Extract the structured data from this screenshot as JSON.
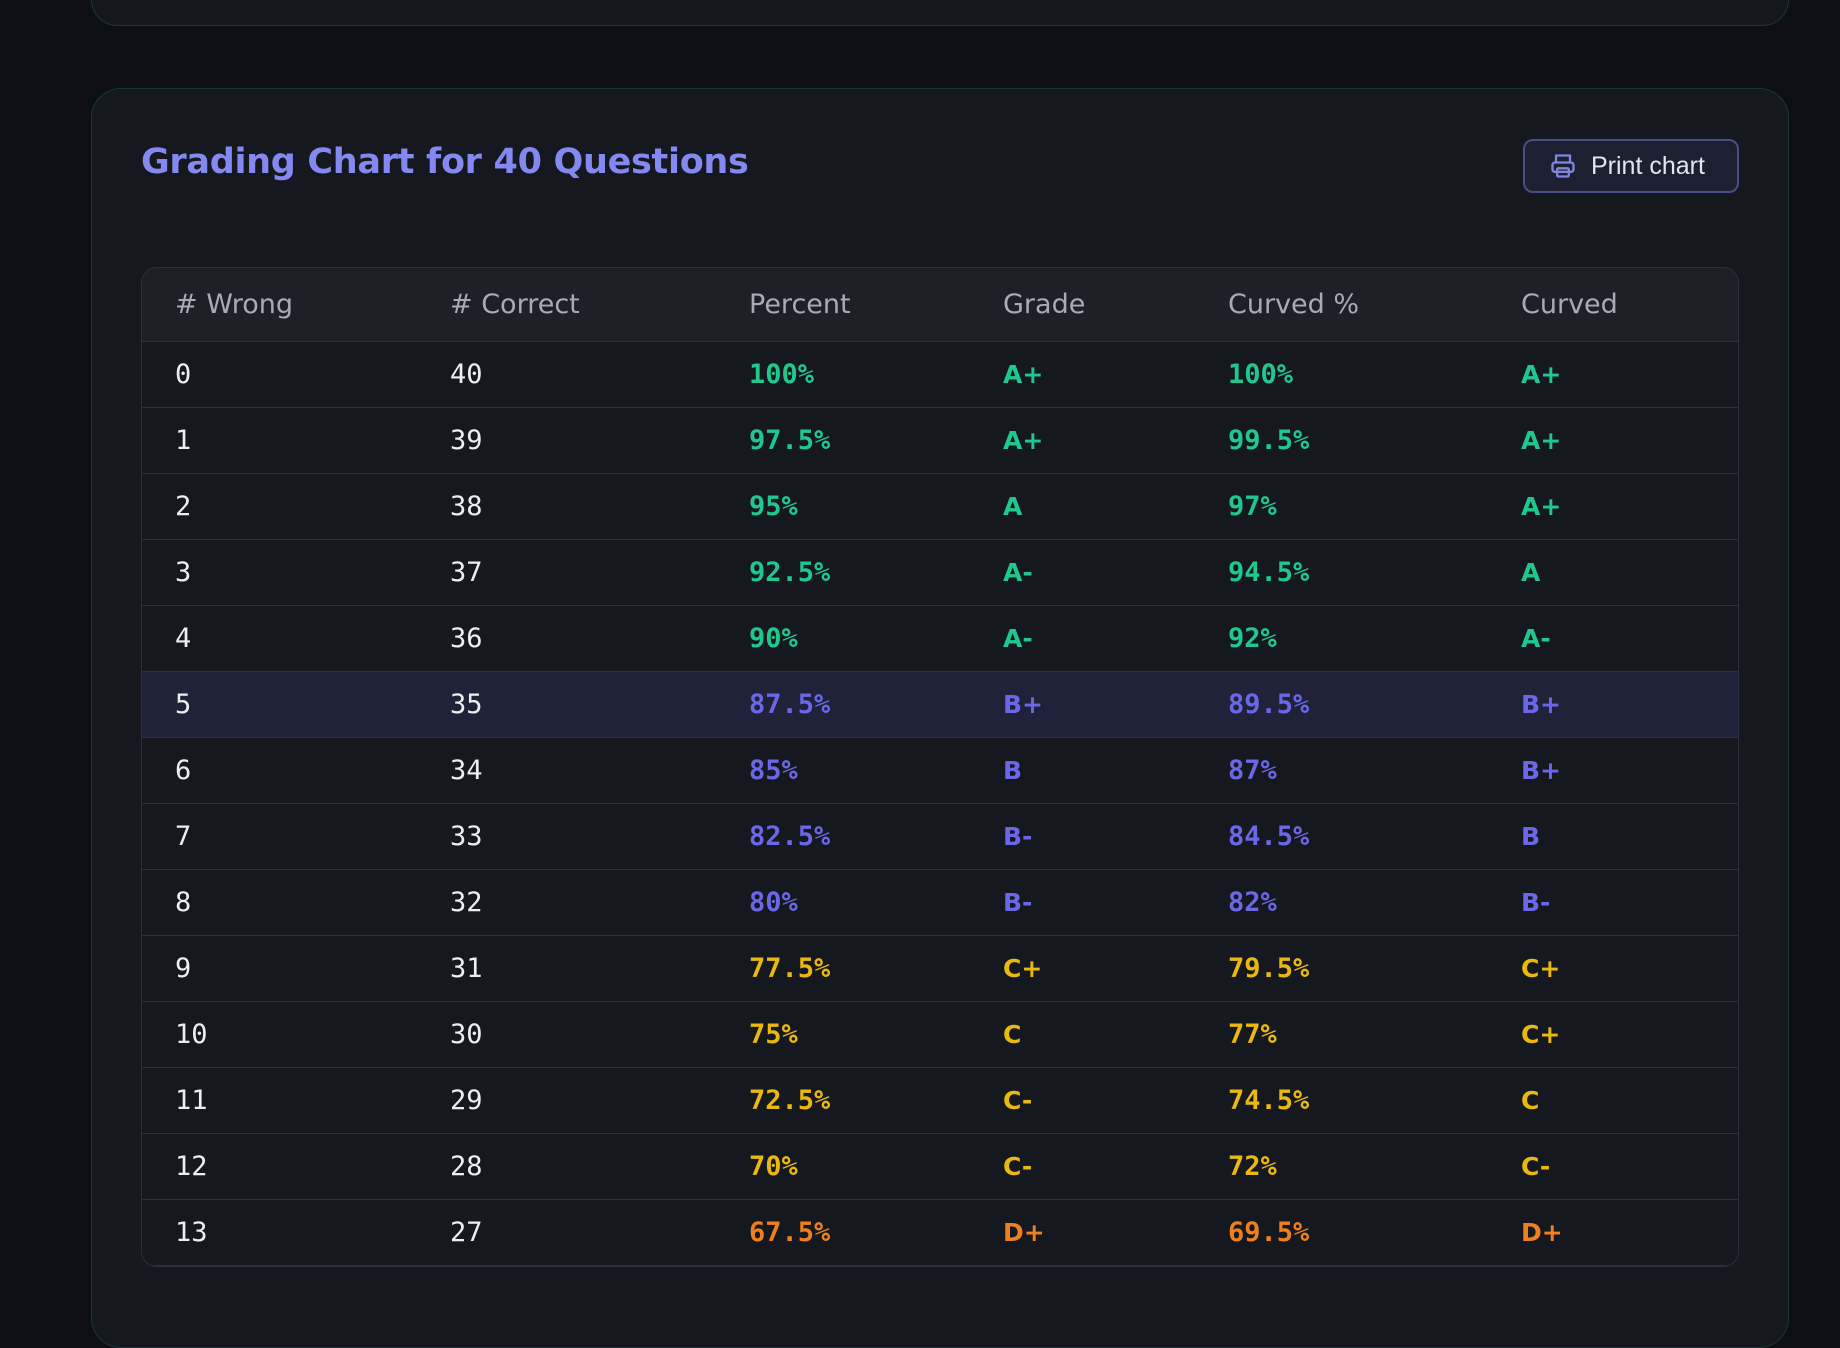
{
  "page": {
    "title": "Grading Chart for 40 Questions",
    "print_label": "Print chart"
  },
  "colors": {
    "green": "#1fc98e",
    "indigo": "#6a68e8",
    "yellow": "#eab90f",
    "orange": "#f0801c",
    "title": "#8389f0"
  },
  "table": {
    "headers": [
      "# Wrong",
      "# Correct",
      "Percent",
      "Grade",
      "Curved %",
      "Curved"
    ],
    "rows": [
      {
        "wrong": "0",
        "correct": "40",
        "percent": "100%",
        "grade": "A+",
        "curved_pct": "100%",
        "curved": "A+",
        "tone": "green",
        "curved_tone": "green"
      },
      {
        "wrong": "1",
        "correct": "39",
        "percent": "97.5%",
        "grade": "A+",
        "curved_pct": "99.5%",
        "curved": "A+",
        "tone": "green",
        "curved_tone": "green"
      },
      {
        "wrong": "2",
        "correct": "38",
        "percent": "95%",
        "grade": "A",
        "curved_pct": "97%",
        "curved": "A+",
        "tone": "green",
        "curved_tone": "green"
      },
      {
        "wrong": "3",
        "correct": "37",
        "percent": "92.5%",
        "grade": "A-",
        "curved_pct": "94.5%",
        "curved": "A",
        "tone": "green",
        "curved_tone": "green"
      },
      {
        "wrong": "4",
        "correct": "36",
        "percent": "90%",
        "grade": "A-",
        "curved_pct": "92%",
        "curved": "A-",
        "tone": "green",
        "curved_tone": "green"
      },
      {
        "wrong": "5",
        "correct": "35",
        "percent": "87.5%",
        "grade": "B+",
        "curved_pct": "89.5%",
        "curved": "B+",
        "tone": "indigo",
        "curved_tone": "indigo",
        "highlight": true
      },
      {
        "wrong": "6",
        "correct": "34",
        "percent": "85%",
        "grade": "B",
        "curved_pct": "87%",
        "curved": "B+",
        "tone": "indigo",
        "curved_tone": "indigo"
      },
      {
        "wrong": "7",
        "correct": "33",
        "percent": "82.5%",
        "grade": "B-",
        "curved_pct": "84.5%",
        "curved": "B",
        "tone": "indigo",
        "curved_tone": "indigo"
      },
      {
        "wrong": "8",
        "correct": "32",
        "percent": "80%",
        "grade": "B-",
        "curved_pct": "82%",
        "curved": "B-",
        "tone": "indigo",
        "curved_tone": "indigo"
      },
      {
        "wrong": "9",
        "correct": "31",
        "percent": "77.5%",
        "grade": "C+",
        "curved_pct": "79.5%",
        "curved": "C+",
        "tone": "yellow",
        "curved_tone": "yellow"
      },
      {
        "wrong": "10",
        "correct": "30",
        "percent": "75%",
        "grade": "C",
        "curved_pct": "77%",
        "curved": "C+",
        "tone": "yellow",
        "curved_tone": "yellow"
      },
      {
        "wrong": "11",
        "correct": "29",
        "percent": "72.5%",
        "grade": "C-",
        "curved_pct": "74.5%",
        "curved": "C",
        "tone": "yellow",
        "curved_tone": "yellow"
      },
      {
        "wrong": "12",
        "correct": "28",
        "percent": "70%",
        "grade": "C-",
        "curved_pct": "72%",
        "curved": "C-",
        "tone": "yellow",
        "curved_tone": "yellow"
      },
      {
        "wrong": "13",
        "correct": "27",
        "percent": "67.5%",
        "grade": "D+",
        "curved_pct": "69.5%",
        "curved": "D+",
        "tone": "orange",
        "curved_tone": "orange"
      }
    ]
  }
}
